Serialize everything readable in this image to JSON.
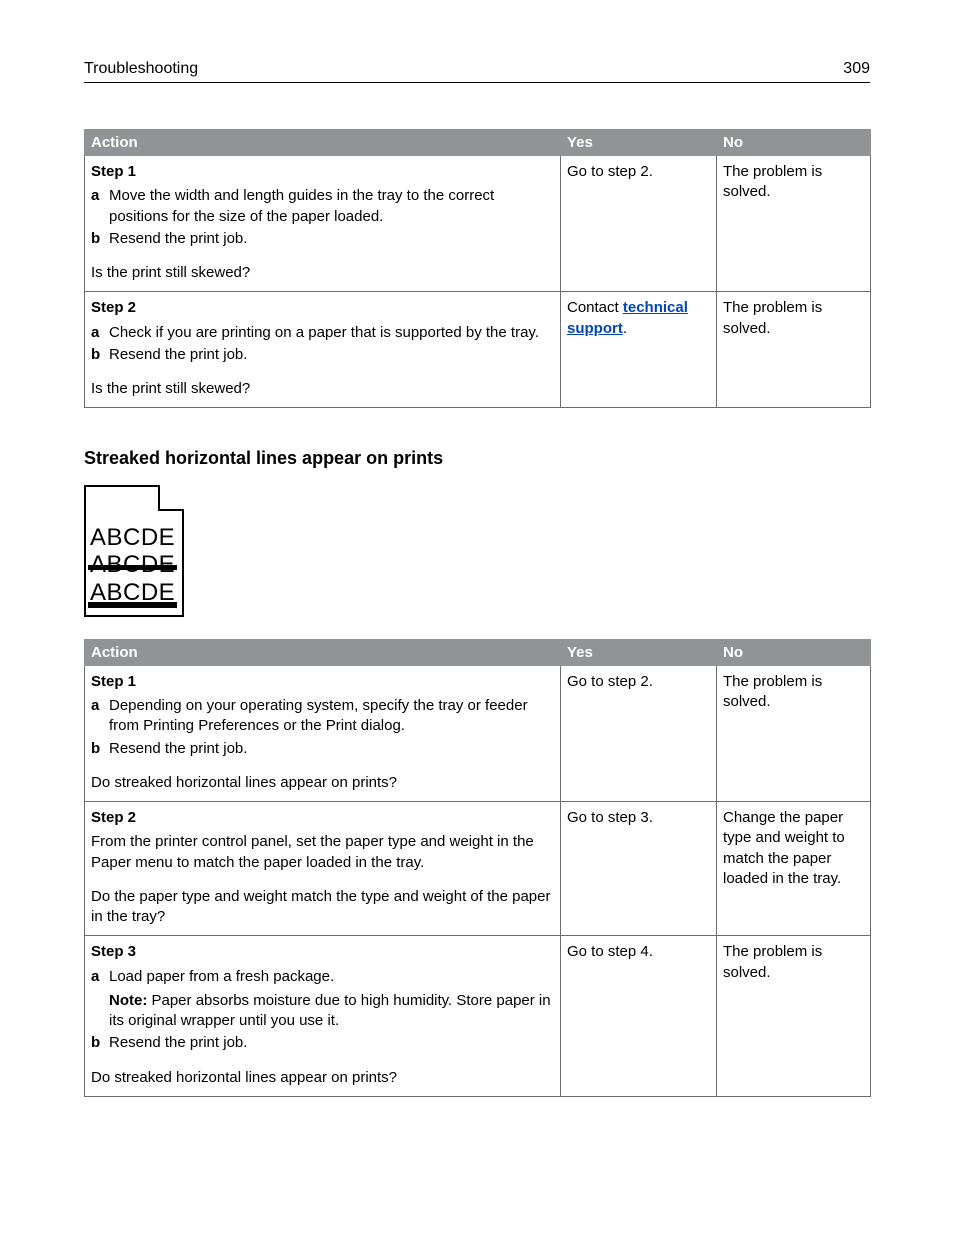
{
  "header": {
    "section": "Troubleshooting",
    "page": "309"
  },
  "table1": {
    "columns": [
      "Action",
      "Yes",
      "No"
    ],
    "rows": [
      {
        "step": "Step 1",
        "items": [
          "Move the width and length guides in the tray to the correct positions for the size of the paper loaded.",
          "Resend the print job."
        ],
        "question": "Is the print still skewed?",
        "yes": "Go to step 2.",
        "no": "The problem is solved."
      },
      {
        "step": "Step 2",
        "items": [
          "Check if you are printing on a paper that is supported by the tray.",
          "Resend the print job."
        ],
        "question": "Is the print still skewed?",
        "yes_prefix": "Contact ",
        "yes_link": "technical support",
        "yes_suffix": ".",
        "no": "The problem is solved."
      }
    ]
  },
  "subheading": "Streaked horizontal lines appear on prints",
  "illus_text": "ABCDE",
  "table2": {
    "columns": [
      "Action",
      "Yes",
      "No"
    ],
    "rows": [
      {
        "step": "Step 1",
        "items": [
          "Depending on your operating system, specify the tray or feeder from Printing Preferences or the Print dialog.",
          "Resend the print job."
        ],
        "question": "Do streaked horizontal lines appear on prints?",
        "yes": "Go to step 2.",
        "no": "The problem is solved."
      },
      {
        "step": "Step 2",
        "body": "From the printer control panel, set the paper type and weight in the Paper menu to match the paper loaded in the tray.",
        "question": "Do the paper type and weight match the type and weight of the paper in the tray?",
        "yes": "Go to step 3.",
        "no": "Change the paper type and weight to match the paper loaded in the tray."
      },
      {
        "step": "Step 3",
        "items_with_note": {
          "a": "Load paper from a fresh package.",
          "note_label": "Note:",
          "note_text": " Paper absorbs moisture due to high humidity. Store paper in its original wrapper until you use it.",
          "b": "Resend the print job."
        },
        "question": "Do streaked horizontal lines appear on prints?",
        "yes": "Go to step 4.",
        "no": "The problem is solved."
      }
    ]
  }
}
